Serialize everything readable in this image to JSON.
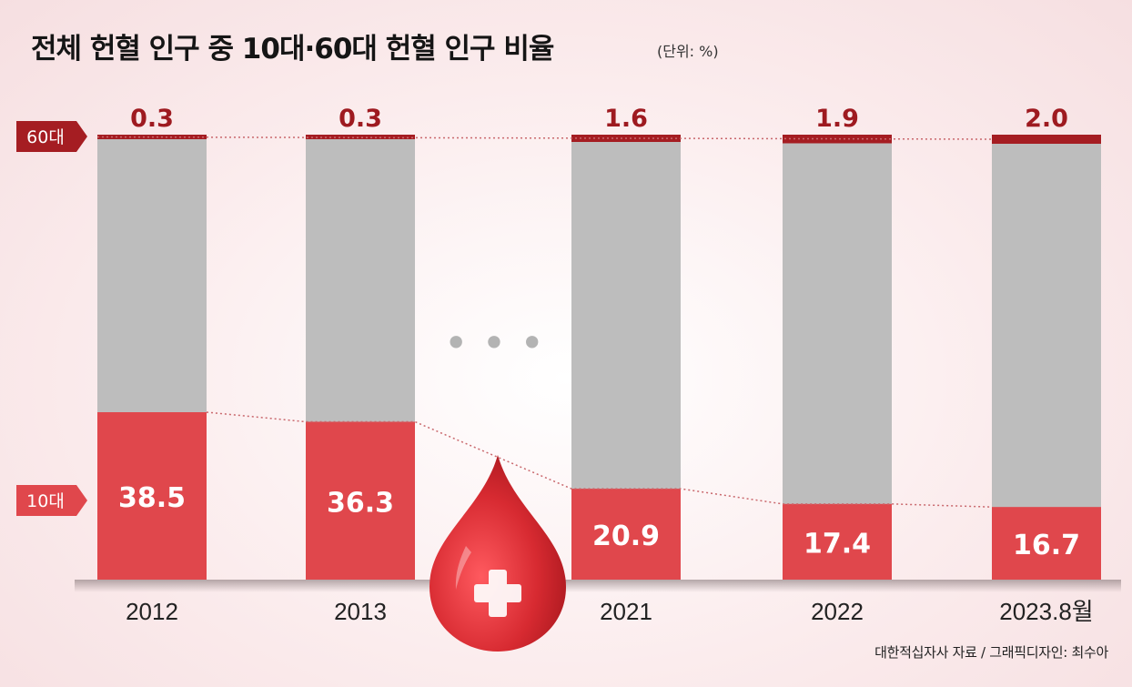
{
  "title": "전체 헌혈 인구 중 10대·60대 헌혈 인구 비율",
  "unit": "(단위: %)",
  "source": "대한적십자사 자료 / 그래픽디자인: 최수아",
  "ellipsis": "• • •",
  "colors": {
    "teen": "#e0474c",
    "sixty": "#a51d22",
    "rest": "#bdbdbd",
    "drop": "#d42a30"
  },
  "chart_data": {
    "type": "bar",
    "stacked": true,
    "title": "전체 헌혈 인구 중 10대·60대 헌혈 인구 비율",
    "unit": "%",
    "categories": [
      "2012",
      "2013",
      "2021",
      "2022",
      "2023.8월"
    ],
    "series": [
      {
        "name": "10대",
        "values": [
          38.5,
          36.3,
          20.9,
          17.4,
          16.7
        ]
      },
      {
        "name": "60대",
        "values": [
          0.3,
          0.3,
          1.6,
          1.9,
          2.0
        ]
      }
    ],
    "legend": [
      "60대",
      "10대"
    ]
  }
}
